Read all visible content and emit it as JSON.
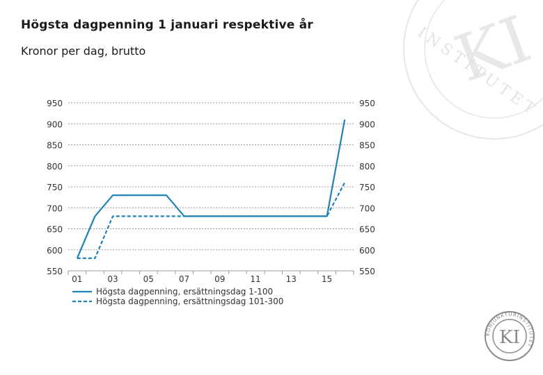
{
  "header": {
    "title": "Högsta dagpenning 1 januari respektive år",
    "subtitle": "Kronor per dag, brutto"
  },
  "logo": {
    "text": "KI",
    "ring_text": "KONJUNKTURINSTITUTET",
    "watermark_text": "KI",
    "watermark_ring": "INSTITUTET"
  },
  "colors": {
    "series": "#1f82b4",
    "grid": "#9a9a9a",
    "axis_text": "#333333",
    "watermark": "#e6e6e6",
    "logo": "#8a8a8a"
  },
  "chart_data": {
    "type": "line",
    "x": [
      2001,
      2002,
      2003,
      2004,
      2005,
      2006,
      2007,
      2008,
      2009,
      2010,
      2011,
      2012,
      2013,
      2014,
      2015,
      2016
    ],
    "xticks": [
      2001,
      2003,
      2005,
      2007,
      2009,
      2011,
      2013,
      2015
    ],
    "xtick_labels": [
      "01",
      "03",
      "05",
      "07",
      "09",
      "11",
      "13",
      "15"
    ],
    "ylim": [
      550,
      950
    ],
    "yticks": [
      550,
      600,
      650,
      700,
      750,
      800,
      850,
      900,
      950
    ],
    "grid": true,
    "legend_position": "bottom",
    "series": [
      {
        "name": "Högsta dagpenning, ersättningsdag 1-100",
        "style": "solid",
        "values": [
          580,
          680,
          730,
          730,
          730,
          730,
          680,
          680,
          680,
          680,
          680,
          680,
          680,
          680,
          680,
          910
        ]
      },
      {
        "name": "Högsta dagpenning, ersättningsdag 101-300",
        "style": "dashed",
        "values": [
          580,
          580,
          680,
          680,
          680,
          680,
          680,
          680,
          680,
          680,
          680,
          680,
          680,
          680,
          680,
          760
        ]
      }
    ]
  }
}
